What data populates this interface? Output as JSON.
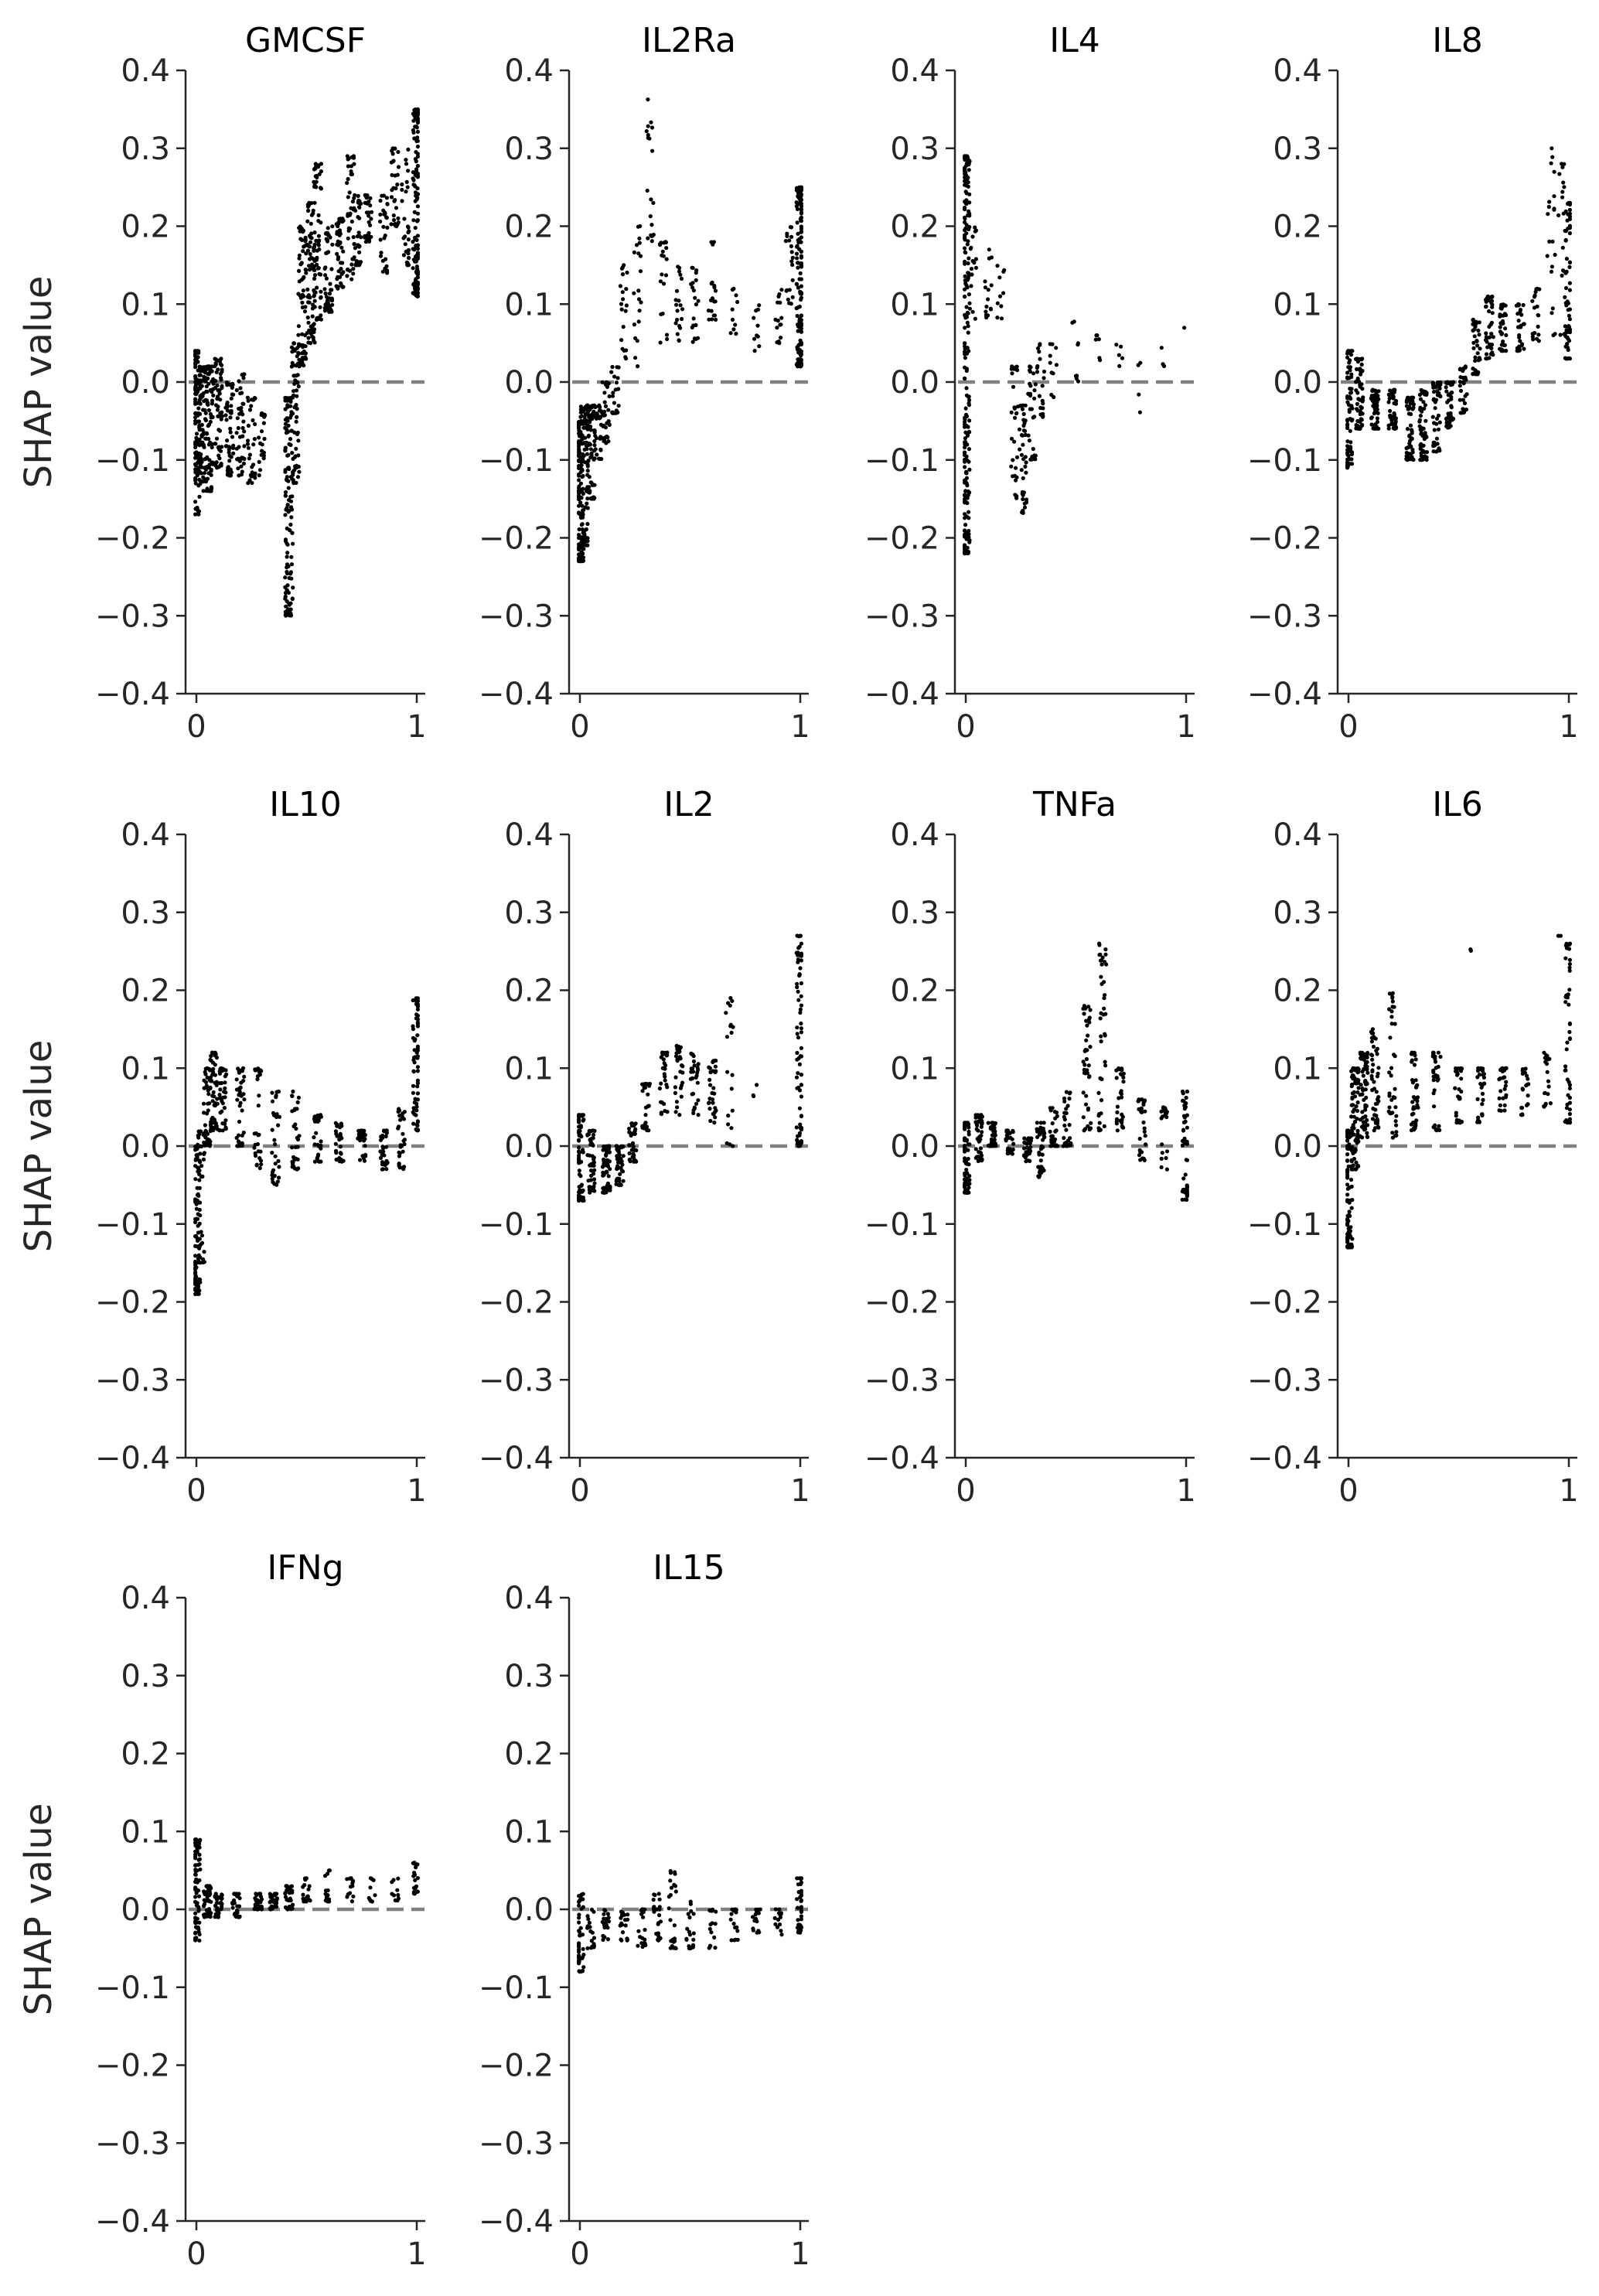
{
  "figure": {
    "marker_color": "#000000",
    "zero_line_color": "#808080",
    "axis_color": "#262626"
  },
  "chart_data": [
    {
      "type": "scatter",
      "title": "GMCSF",
      "ylabel": "SHAP value",
      "xlim": [
        0,
        1
      ],
      "ylim": [
        -0.4,
        0.4
      ],
      "x_ticks": [
        "0",
        "1"
      ],
      "y_ticks": [
        "0.4",
        "0.3",
        "0.2",
        "0.1",
        "0.0",
        "−0.1",
        "−0.2",
        "−0.3",
        "−0.4"
      ],
      "zero_line": 0,
      "clusters": [
        [
          0,
          -0.17,
          0.04,
          80
        ],
        [
          0.01,
          -0.12,
          0,
          40
        ],
        [
          0.03,
          -0.14,
          0.02,
          70
        ],
        [
          0.06,
          -0.14,
          0.02,
          80
        ],
        [
          0.1,
          -0.11,
          0.03,
          60
        ],
        [
          0.15,
          -0.12,
          0,
          50
        ],
        [
          0.2,
          -0.12,
          0.01,
          40
        ],
        [
          0.25,
          -0.13,
          -0.02,
          30
        ],
        [
          0.3,
          -0.12,
          -0.04,
          20
        ],
        [
          0.42,
          -0.3,
          -0.02,
          130
        ],
        [
          0.45,
          -0.13,
          0.05,
          60
        ],
        [
          0.48,
          0.02,
          0.2,
          70
        ],
        [
          0.52,
          0.05,
          0.23,
          70
        ],
        [
          0.55,
          0.08,
          0.28,
          60
        ],
        [
          0.6,
          0.09,
          0.2,
          60
        ],
        [
          0.65,
          0.12,
          0.21,
          50
        ],
        [
          0.7,
          0.13,
          0.29,
          40
        ],
        [
          0.73,
          0.15,
          0.24,
          40
        ],
        [
          0.78,
          0.18,
          0.24,
          30
        ],
        [
          0.85,
          0.14,
          0.24,
          30
        ],
        [
          0.9,
          0.2,
          0.3,
          30
        ],
        [
          0.95,
          0.15,
          0.3,
          30
        ],
        [
          1,
          0.11,
          0.35,
          140
        ]
      ]
    },
    {
      "type": "scatter",
      "title": "IL2Ra",
      "ylabel": "",
      "xlim": [
        0,
        1
      ],
      "ylim": [
        -0.4,
        0.4
      ],
      "x_ticks": [
        "0",
        "1"
      ],
      "y_ticks": [
        "0.4",
        "0.3",
        "0.2",
        "0.1",
        "0.0",
        "−0.1",
        "−0.2",
        "−0.3",
        "−0.4"
      ],
      "zero_line": 0,
      "clusters": [
        [
          0,
          -0.23,
          -0.05,
          120
        ],
        [
          0.02,
          -0.21,
          -0.03,
          80
        ],
        [
          0.05,
          -0.15,
          -0.03,
          60
        ],
        [
          0.08,
          -0.1,
          -0.03,
          40
        ],
        [
          0.12,
          -0.08,
          0,
          30
        ],
        [
          0.16,
          -0.04,
          0.02,
          20
        ],
        [
          0.2,
          0.03,
          0.15,
          20
        ],
        [
          0.26,
          0.02,
          0.2,
          20
        ],
        [
          0.32,
          0.18,
          0.37,
          20
        ],
        [
          0.38,
          0.05,
          0.18,
          20
        ],
        [
          0.45,
          0.05,
          0.15,
          20
        ],
        [
          0.52,
          0.05,
          0.15,
          20
        ],
        [
          0.6,
          0.08,
          0.18,
          20
        ],
        [
          0.7,
          0.06,
          0.12,
          10
        ],
        [
          0.8,
          0.04,
          0.1,
          10
        ],
        [
          0.9,
          0.05,
          0.12,
          15
        ],
        [
          0.95,
          0.1,
          0.2,
          20
        ],
        [
          1,
          0.02,
          0.25,
          140
        ]
      ]
    },
    {
      "type": "scatter",
      "title": "IL4",
      "ylabel": "",
      "xlim": [
        0,
        1
      ],
      "ylim": [
        -0.4,
        0.4
      ],
      "x_ticks": [
        "0",
        "1"
      ],
      "y_ticks": [
        "0.4",
        "0.3",
        "0.2",
        "0.1",
        "0.0",
        "−0.1",
        "−0.2",
        "−0.3",
        "−0.4"
      ],
      "zero_line": 0,
      "clusters": [
        [
          0,
          -0.22,
          0.29,
          230
        ],
        [
          0.03,
          0.08,
          0.2,
          20
        ],
        [
          0.1,
          0.08,
          0.17,
          15
        ],
        [
          0.16,
          0.07,
          0.15,
          10
        ],
        [
          0.22,
          -0.15,
          0.02,
          30
        ],
        [
          0.26,
          -0.17,
          -0.03,
          40
        ],
        [
          0.3,
          -0.1,
          0.02,
          30
        ],
        [
          0.34,
          -0.05,
          0.05,
          20
        ],
        [
          0.4,
          -0.02,
          0.05,
          10
        ],
        [
          0.5,
          0,
          0.08,
          8
        ],
        [
          0.6,
          0.02,
          0.06,
          6
        ],
        [
          0.7,
          0.02,
          0.05,
          5
        ],
        [
          0.8,
          -0.04,
          0.03,
          4
        ],
        [
          0.9,
          0.02,
          0.05,
          3
        ],
        [
          1,
          0.06,
          0.07,
          1
        ]
      ]
    },
    {
      "type": "scatter",
      "title": "IL8",
      "ylabel": "",
      "xlim": [
        0,
        1
      ],
      "ylim": [
        -0.4,
        0.4
      ],
      "x_ticks": [
        "0",
        "1"
      ],
      "y_ticks": [
        "0.4",
        "0.3",
        "0.2",
        "0.1",
        "0.0",
        "−0.1",
        "−0.2",
        "−0.3",
        "−0.4"
      ],
      "zero_line": 0,
      "clusters": [
        [
          0,
          -0.11,
          0.04,
          80
        ],
        [
          0.05,
          -0.06,
          0.03,
          60
        ],
        [
          0.12,
          -0.06,
          -0.01,
          60
        ],
        [
          0.2,
          -0.06,
          -0.01,
          50
        ],
        [
          0.28,
          -0.1,
          -0.02,
          60
        ],
        [
          0.34,
          -0.1,
          -0.01,
          60
        ],
        [
          0.4,
          -0.09,
          0,
          50
        ],
        [
          0.46,
          -0.06,
          0,
          40
        ],
        [
          0.52,
          -0.04,
          0.02,
          30
        ],
        [
          0.58,
          0.01,
          0.08,
          40
        ],
        [
          0.64,
          0.03,
          0.11,
          40
        ],
        [
          0.7,
          0.04,
          0.1,
          40
        ],
        [
          0.78,
          0.04,
          0.1,
          30
        ],
        [
          0.85,
          0.05,
          0.12,
          20
        ],
        [
          0.92,
          0.06,
          0.3,
          20
        ],
        [
          0.97,
          0.06,
          0.28,
          20
        ],
        [
          1,
          0.03,
          0.23,
          60
        ]
      ]
    },
    {
      "type": "scatter",
      "title": "IL10",
      "ylabel": "SHAP value",
      "xlim": [
        0,
        1
      ],
      "ylim": [
        -0.4,
        0.4
      ],
      "x_ticks": [
        "0",
        "1"
      ],
      "y_ticks": [
        "0.4",
        "0.3",
        "0.2",
        "0.1",
        "0.0",
        "−0.1",
        "−0.2",
        "−0.3",
        "−0.4"
      ],
      "zero_line": 0,
      "clusters": [
        [
          0,
          -0.19,
          0,
          80
        ],
        [
          0.02,
          -0.15,
          0.02,
          40
        ],
        [
          0.05,
          0,
          0.1,
          50
        ],
        [
          0.08,
          0.02,
          0.12,
          50
        ],
        [
          0.12,
          0.02,
          0.1,
          40
        ],
        [
          0.2,
          0,
          0.1,
          40
        ],
        [
          0.28,
          -0.03,
          0.1,
          30
        ],
        [
          0.36,
          -0.05,
          0.07,
          30
        ],
        [
          0.45,
          -0.03,
          0.07,
          30
        ],
        [
          0.55,
          -0.02,
          0.04,
          30
        ],
        [
          0.65,
          -0.02,
          0.03,
          30
        ],
        [
          0.75,
          -0.02,
          0.02,
          30
        ],
        [
          0.85,
          -0.03,
          0.02,
          30
        ],
        [
          0.93,
          -0.03,
          0.05,
          30
        ],
        [
          1,
          0.02,
          0.19,
          70
        ]
      ]
    },
    {
      "type": "scatter",
      "title": "IL2",
      "ylabel": "",
      "xlim": [
        0,
        1
      ],
      "ylim": [
        -0.4,
        0.4
      ],
      "x_ticks": [
        "0",
        "1"
      ],
      "y_ticks": [
        "0.4",
        "0.3",
        "0.2",
        "0.1",
        "0.0",
        "−0.1",
        "−0.2",
        "−0.3",
        "−0.4"
      ],
      "zero_line": 0,
      "clusters": [
        [
          0,
          -0.07,
          0.04,
          70
        ],
        [
          0.05,
          -0.06,
          0.02,
          50
        ],
        [
          0.12,
          -0.06,
          0,
          60
        ],
        [
          0.18,
          -0.05,
          0,
          50
        ],
        [
          0.24,
          -0.02,
          0.03,
          40
        ],
        [
          0.3,
          0.02,
          0.08,
          30
        ],
        [
          0.38,
          0.04,
          0.12,
          30
        ],
        [
          0.45,
          0.04,
          0.13,
          30
        ],
        [
          0.52,
          0.04,
          0.12,
          30
        ],
        [
          0.6,
          0.03,
          0.11,
          30
        ],
        [
          0.68,
          0,
          0.19,
          20
        ],
        [
          0.8,
          0.06,
          0.08,
          3
        ],
        [
          1,
          0,
          0.27,
          80
        ]
      ]
    },
    {
      "type": "scatter",
      "title": "TNFa",
      "ylabel": "",
      "xlim": [
        0,
        1
      ],
      "ylim": [
        -0.4,
        0.4
      ],
      "x_ticks": [
        "0",
        "1"
      ],
      "y_ticks": [
        "0.4",
        "0.3",
        "0.2",
        "0.1",
        "0.0",
        "−0.1",
        "−0.2",
        "−0.3",
        "−0.4"
      ],
      "zero_line": 0,
      "clusters": [
        [
          0,
          -0.06,
          0.03,
          70
        ],
        [
          0.06,
          -0.02,
          0.04,
          50
        ],
        [
          0.12,
          0,
          0.03,
          40
        ],
        [
          0.2,
          -0.01,
          0.02,
          30
        ],
        [
          0.28,
          -0.02,
          0.01,
          30
        ],
        [
          0.34,
          -0.04,
          0.03,
          40
        ],
        [
          0.4,
          0,
          0.05,
          30
        ],
        [
          0.46,
          0,
          0.07,
          30
        ],
        [
          0.55,
          0.02,
          0.18,
          40
        ],
        [
          0.62,
          0.02,
          0.26,
          40
        ],
        [
          0.7,
          0.02,
          0.1,
          30
        ],
        [
          0.8,
          -0.02,
          0.06,
          30
        ],
        [
          0.9,
          -0.03,
          0.05,
          20
        ],
        [
          1,
          -0.07,
          0.07,
          50
        ]
      ]
    },
    {
      "type": "scatter",
      "title": "IL6",
      "ylabel": "",
      "xlim": [
        0,
        1
      ],
      "ylim": [
        -0.4,
        0.4
      ],
      "x_ticks": [
        "0",
        "1"
      ],
      "y_ticks": [
        "0.4",
        "0.3",
        "0.2",
        "0.1",
        "0.0",
        "−0.1",
        "−0.2",
        "−0.3",
        "−0.4"
      ],
      "zero_line": 0,
      "clusters": [
        [
          0,
          -0.13,
          0.02,
          100
        ],
        [
          0.03,
          -0.03,
          0.1,
          80
        ],
        [
          0.07,
          0.01,
          0.12,
          70
        ],
        [
          0.12,
          0.02,
          0.15,
          50
        ],
        [
          0.2,
          0.01,
          0.2,
          40
        ],
        [
          0.3,
          0.02,
          0.12,
          40
        ],
        [
          0.4,
          0.02,
          0.12,
          30
        ],
        [
          0.5,
          0.03,
          0.1,
          30
        ],
        [
          0.6,
          0.03,
          0.1,
          30
        ],
        [
          0.7,
          0.04,
          0.1,
          25
        ],
        [
          0.8,
          0.04,
          0.1,
          20
        ],
        [
          0.9,
          0.05,
          0.12,
          20
        ],
        [
          1,
          0.03,
          0.26,
          50
        ],
        [
          0.55,
          0.25,
          0.26,
          2
        ],
        [
          0.95,
          0.25,
          0.27,
          2
        ]
      ]
    },
    {
      "type": "scatter",
      "title": "IFNg",
      "ylabel": "SHAP value",
      "xlim": [
        0,
        1
      ],
      "ylim": [
        -0.4,
        0.4
      ],
      "x_ticks": [
        "0",
        "1"
      ],
      "y_ticks": [
        "0.4",
        "0.3",
        "0.2",
        "0.1",
        "0.0",
        "−0.1",
        "−0.2",
        "−0.3",
        "−0.4"
      ],
      "zero_line": 0,
      "clusters": [
        [
          0,
          -0.04,
          0.09,
          80
        ],
        [
          0.05,
          -0.01,
          0.03,
          50
        ],
        [
          0.1,
          -0.01,
          0.02,
          40
        ],
        [
          0.18,
          -0.01,
          0.02,
          30
        ],
        [
          0.28,
          0,
          0.02,
          30
        ],
        [
          0.35,
          0,
          0.02,
          30
        ],
        [
          0.42,
          0,
          0.03,
          30
        ],
        [
          0.5,
          0.01,
          0.04,
          20
        ],
        [
          0.6,
          0.01,
          0.05,
          15
        ],
        [
          0.7,
          0.01,
          0.04,
          15
        ],
        [
          0.8,
          0.01,
          0.04,
          10
        ],
        [
          0.9,
          0.01,
          0.04,
          10
        ],
        [
          1,
          0.02,
          0.06,
          20
        ]
      ]
    },
    {
      "type": "scatter",
      "title": "IL15",
      "ylabel": "",
      "xlim": [
        0,
        1
      ],
      "ylim": [
        -0.4,
        0.4
      ],
      "x_ticks": [
        "0",
        "1"
      ],
      "y_ticks": [
        "0.4",
        "0.3",
        "0.2",
        "0.1",
        "0.0",
        "−0.1",
        "−0.2",
        "−0.3",
        "−0.4"
      ],
      "zero_line": 0,
      "clusters": [
        [
          0,
          -0.08,
          0.02,
          50
        ],
        [
          0.05,
          -0.05,
          0,
          20
        ],
        [
          0.12,
          -0.04,
          0,
          20
        ],
        [
          0.2,
          -0.04,
          0,
          20
        ],
        [
          0.28,
          -0.05,
          0,
          20
        ],
        [
          0.35,
          -0.04,
          0.02,
          25
        ],
        [
          0.42,
          -0.05,
          0.05,
          25
        ],
        [
          0.5,
          -0.05,
          0.01,
          20
        ],
        [
          0.6,
          -0.05,
          0,
          15
        ],
        [
          0.7,
          -0.04,
          0,
          15
        ],
        [
          0.8,
          -0.03,
          0,
          15
        ],
        [
          0.9,
          -0.04,
          0,
          15
        ],
        [
          1,
          -0.03,
          0.04,
          40
        ]
      ]
    }
  ]
}
